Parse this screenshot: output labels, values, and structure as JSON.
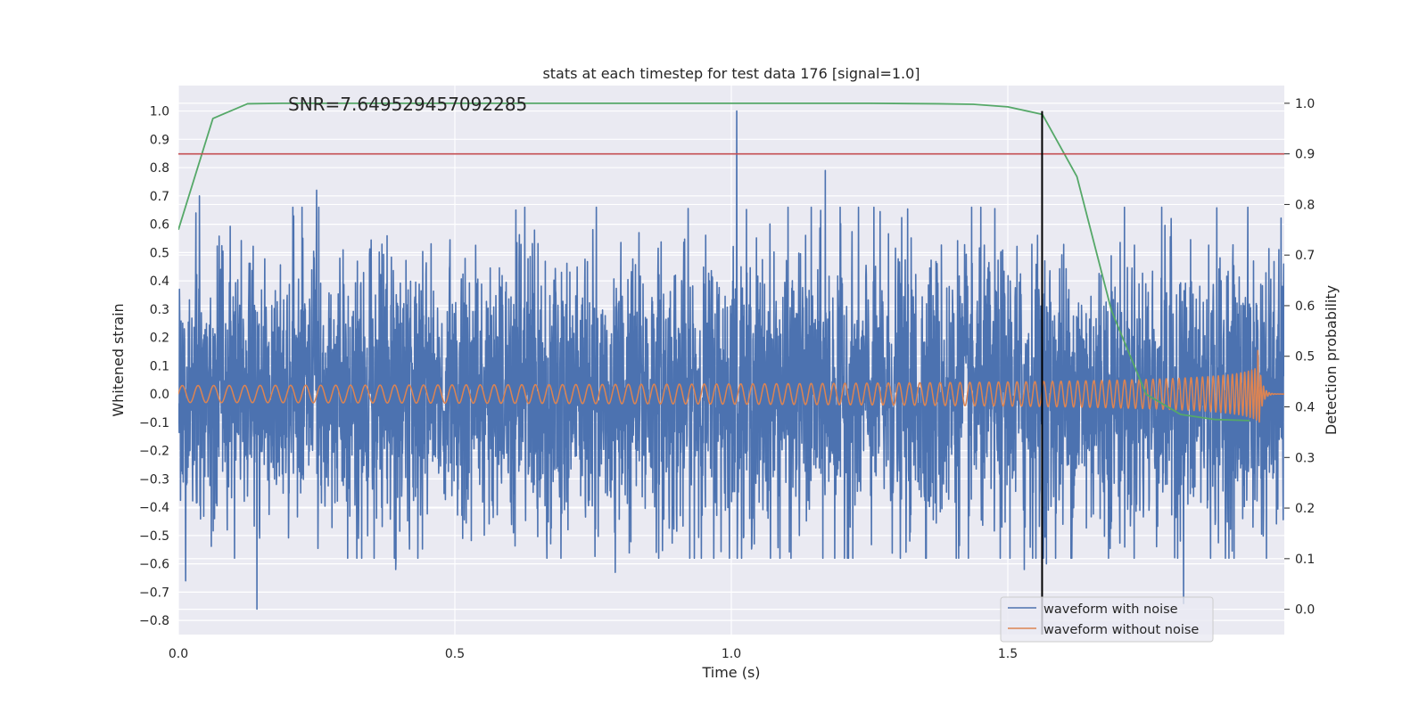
{
  "chart_data": {
    "type": "line",
    "title": "stats at each timestep for test data 176 [signal=1.0]",
    "xlabel": "Time (s)",
    "ylabel": "Whitened strain",
    "y2label": "Detection probability",
    "annotation": "SNR=7.649529457092285",
    "xlim": [
      0.0,
      2.0
    ],
    "ylim": [
      -0.85,
      1.09
    ],
    "y2lim": [
      -0.05,
      1.035
    ],
    "xticks": [
      0.0,
      0.5,
      1.0,
      1.5
    ],
    "xtick_labels": [
      "0.0",
      "0.5",
      "1.0",
      "1.5"
    ],
    "yticks": [
      -0.8,
      -0.7,
      -0.6,
      -0.5,
      -0.4,
      -0.3,
      -0.2,
      -0.1,
      0.0,
      0.1,
      0.2,
      0.3,
      0.4,
      0.5,
      0.6,
      0.7,
      0.8,
      0.9,
      1.0
    ],
    "ytick_labels": [
      "−0.8",
      "−0.7",
      "−0.6",
      "−0.5",
      "−0.4",
      "−0.3",
      "−0.2",
      "−0.1",
      "0.0",
      "0.1",
      "0.2",
      "0.3",
      "0.4",
      "0.5",
      "0.6",
      "0.7",
      "0.8",
      "0.9",
      "1.0"
    ],
    "y2ticks": [
      0.0,
      0.1,
      0.2,
      0.3,
      0.4,
      0.5,
      0.6,
      0.7,
      0.8,
      0.9,
      1.0
    ],
    "y2tick_labels": [
      "0.0",
      "0.1",
      "0.2",
      "0.3",
      "0.4",
      "0.5",
      "0.6",
      "0.7",
      "0.8",
      "0.9",
      "1.0"
    ],
    "grid": true,
    "legend_position": "lower-right",
    "threshold_line": {
      "y2": 0.9,
      "color": "#c44e52"
    },
    "vertical_marker": {
      "x": 1.562,
      "color": "#000000"
    },
    "series": [
      {
        "name": "waveform with noise",
        "color": "#4c72b0",
        "axis": "left",
        "kind": "noise",
        "duration": 1.9995,
        "samples": 4096,
        "std": 0.25,
        "extremes": [
          {
            "x": 0.013,
            "y": -0.66
          },
          {
            "x": 0.038,
            "y": 0.7
          },
          {
            "x": 0.142,
            "y": -0.76
          },
          {
            "x": 0.25,
            "y": 0.72
          },
          {
            "x": 0.393,
            "y": -0.62
          },
          {
            "x": 0.79,
            "y": -0.63
          },
          {
            "x": 1.01,
            "y": 1.0
          },
          {
            "x": 1.17,
            "y": 0.79
          },
          {
            "x": 1.53,
            "y": -0.62
          },
          {
            "x": 1.57,
            "y": -0.6
          },
          {
            "x": 1.818,
            "y": -0.74
          }
        ]
      },
      {
        "name": "waveform without noise",
        "color": "#dd8452",
        "axis": "left",
        "kind": "chirp",
        "end": 1.952,
        "amplitude_start": 0.03,
        "amplitude_peak": 0.16,
        "frequency_start": 35,
        "frequency_end": 300
      },
      {
        "name": "detection probability",
        "color": "#55a868",
        "axis": "right",
        "kind": "line",
        "x": [
          0.0,
          0.0625,
          0.125,
          0.1875,
          0.25,
          0.5,
          0.75,
          1.0,
          1.25,
          1.375,
          1.4375,
          1.5,
          1.5625,
          1.625,
          1.6875,
          1.75,
          1.8125,
          1.875,
          1.9375
        ],
        "y": [
          0.75,
          0.97,
          0.999,
          1.0,
          1.0,
          1.0,
          1.0,
          1.0,
          1.0,
          0.999,
          0.998,
          0.993,
          0.978,
          0.855,
          0.59,
          0.425,
          0.385,
          0.375,
          0.373
        ]
      }
    ]
  }
}
